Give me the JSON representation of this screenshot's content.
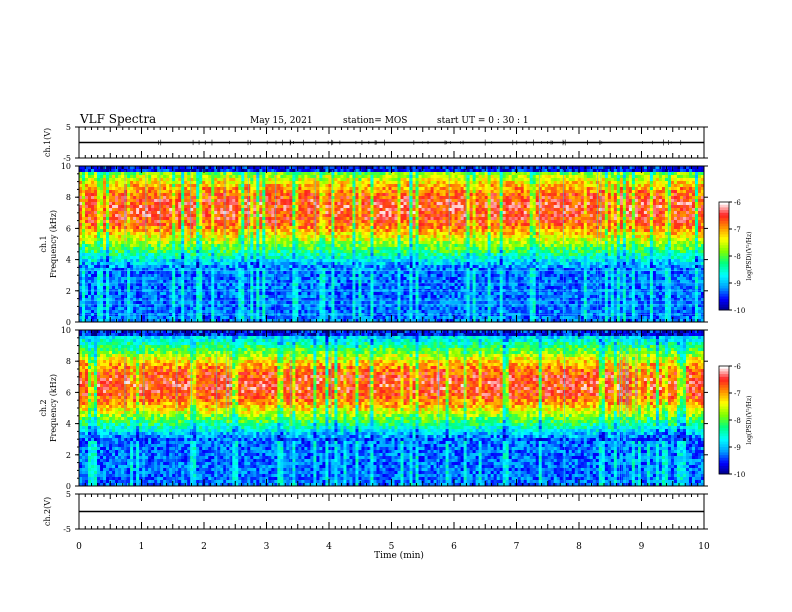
{
  "header": {
    "title": "VLF Spectra",
    "date": "May 15, 2021",
    "station": "station= MOS",
    "start": "start  UT =   0 : 30 : 1"
  },
  "colors": {
    "colormap": [
      "#00007a",
      "#0000ff",
      "#00a0ff",
      "#00ffff",
      "#00ff80",
      "#80ff00",
      "#ffff00",
      "#ff9000",
      "#ff2020",
      "#ffffff"
    ]
  },
  "chart_data": [
    {
      "type": "line",
      "name": "ch.1 waveform",
      "ylabel": "ch.1(V)",
      "ylim": [
        -5,
        5
      ],
      "yticks": [
        "5",
        "-5"
      ],
      "xlim": [
        0,
        10
      ],
      "series": [
        {
          "values_description": "flat trace",
          "y": [
            0,
            0
          ]
        }
      ]
    },
    {
      "type": "heatmap",
      "ylabel": "ch.1\nFrequency (kHz)",
      "ylabel_lines": [
        "ch.1",
        "Frequency (kHz)"
      ],
      "ylim": [
        0,
        10
      ],
      "yticks": [
        "0",
        "2",
        "4",
        "6",
        "8",
        "10"
      ],
      "xlim": [
        0,
        10
      ],
      "band_peak_khz": [
        5.5,
        9.0
      ],
      "colorbar": {
        "label": "log(PSD)(V²/Hz)",
        "ticks": [
          "-6",
          "-7",
          "-8",
          "-9",
          "-10"
        ],
        "range": [
          -10,
          -6
        ]
      }
    },
    {
      "type": "heatmap",
      "ylabel": "ch.2\nFrequency (kHz)",
      "ylabel_lines": [
        "ch.2",
        "Frequency (kHz)"
      ],
      "ylim": [
        0,
        10
      ],
      "yticks": [
        "0",
        "2",
        "4",
        "6",
        "8",
        "10"
      ],
      "xlim": [
        0,
        10
      ],
      "band_peak_khz": [
        5.0,
        8.0
      ],
      "colorbar": {
        "label": "log(PSD)(V²/Hz)",
        "ticks": [
          "-6",
          "-7",
          "-8",
          "-9",
          "-10"
        ],
        "range": [
          -10,
          -6
        ]
      }
    },
    {
      "type": "line",
      "name": "ch.2 waveform",
      "ylabel": "ch.2(V)",
      "ylim": [
        -5,
        5
      ],
      "yticks": [
        "5",
        "-5"
      ],
      "xlim": [
        0,
        10
      ],
      "series": [
        {
          "values_description": "flat trace",
          "y": [
            0,
            0
          ]
        }
      ]
    }
  ],
  "xaxis": {
    "label": "Time  (min)",
    "ticks": [
      "0",
      "1",
      "2",
      "3",
      "4",
      "5",
      "6",
      "7",
      "8",
      "9",
      "10"
    ]
  }
}
